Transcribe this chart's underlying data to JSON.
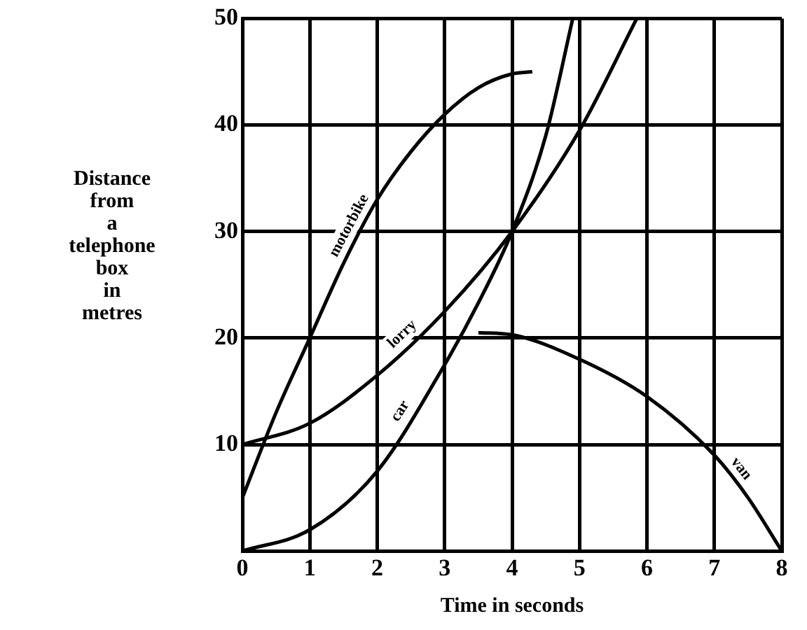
{
  "chart_data": {
    "type": "line",
    "xlabel": "Time in seconds",
    "ylabel": "Distance from a telephone box in metres",
    "xlim": [
      0,
      8
    ],
    "xticks": [
      0,
      1,
      2,
      3,
      4,
      5,
      6,
      7,
      8
    ],
    "ylim": [
      0,
      50
    ],
    "yticks": [
      {
        "value": 0,
        "label": null
      },
      10,
      20,
      30,
      40,
      50
    ],
    "grid": true,
    "legend": false,
    "marker": "none",
    "line_style": "solid",
    "series": [
      {
        "name": "motorbike",
        "color": "#000000",
        "x": [
          0,
          0.5,
          1,
          1.5,
          2,
          2.5,
          3,
          3.5,
          4,
          4.3
        ],
        "values": [
          5,
          13,
          20,
          27,
          33,
          37.5,
          41,
          43.5,
          44.8,
          45
        ]
      },
      {
        "name": "lorry",
        "color": "#000000",
        "x": [
          0,
          1,
          2,
          3,
          4,
          5,
          5.85
        ],
        "values": [
          10,
          12,
          16.5,
          22.5,
          30,
          39.5,
          50
        ]
      },
      {
        "name": "car",
        "color": "#000000",
        "x": [
          0,
          1,
          2,
          3,
          3.5,
          4,
          4.5,
          4.9
        ],
        "values": [
          0,
          2,
          7.5,
          17.5,
          23.3,
          30,
          39,
          50
        ]
      },
      {
        "name": "van",
        "color": "#000000",
        "x": [
          3.5,
          4,
          5,
          6,
          7,
          7.5,
          8
        ],
        "values": [
          20.5,
          20.3,
          18,
          14.5,
          9,
          5,
          0
        ]
      }
    ]
  }
}
